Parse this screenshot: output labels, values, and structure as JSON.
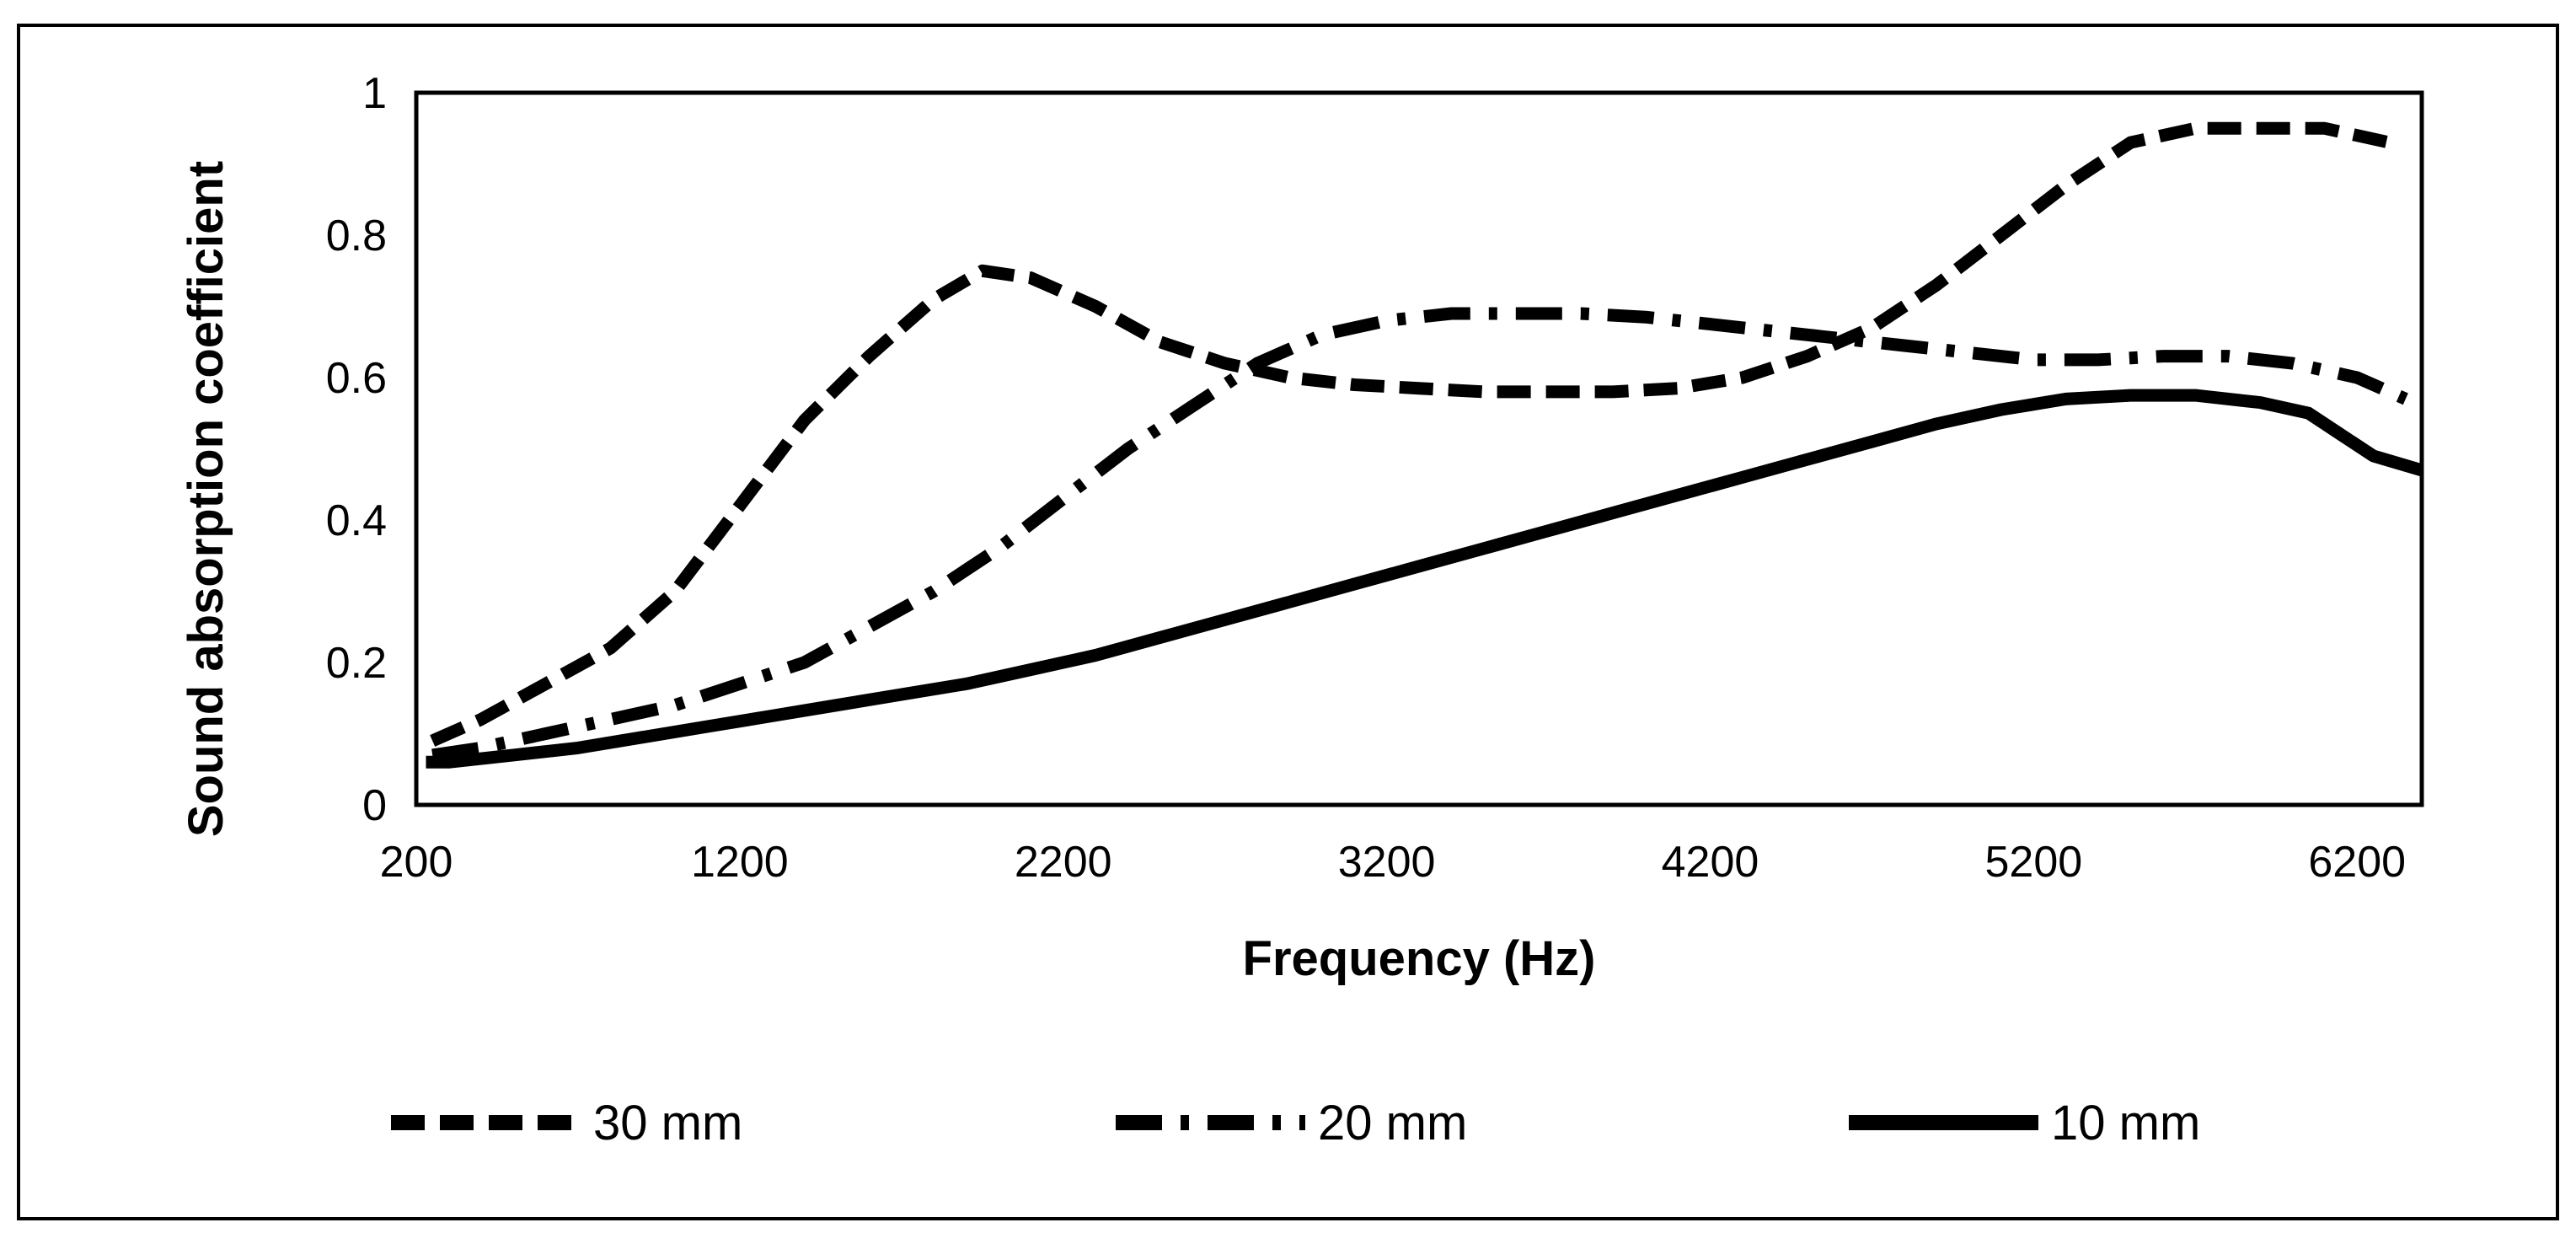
{
  "chart_data": {
    "type": "line",
    "title": "",
    "xlabel": "Frequency (Hz)",
    "ylabel": "Sound absorption coefficient",
    "xlim": [
      200,
      6400
    ],
    "ylim": [
      0,
      1
    ],
    "x_ticks": [
      200,
      1200,
      2200,
      3200,
      4200,
      5200,
      6200
    ],
    "y_ticks": [
      0,
      0.2,
      0.4,
      0.6,
      0.8,
      1
    ],
    "y_tick_labels": [
      "0",
      "0.2",
      "0.4",
      "0.6",
      "0.8",
      "1"
    ],
    "grid": false,
    "legend_position": "bottom",
    "series": [
      {
        "name": "30 mm",
        "style": "dashed",
        "x": [
          250,
          400,
          600,
          800,
          1000,
          1200,
          1400,
          1600,
          1800,
          1950,
          2100,
          2300,
          2500,
          2700,
          2900,
          3100,
          3300,
          3500,
          3700,
          3900,
          4100,
          4300,
          4500,
          4700,
          4900,
          5100,
          5300,
          5500,
          5700,
          5900,
          6100,
          6300
        ],
        "y": [
          0.09,
          0.12,
          0.17,
          0.22,
          0.3,
          0.42,
          0.54,
          0.63,
          0.71,
          0.75,
          0.74,
          0.7,
          0.65,
          0.62,
          0.6,
          0.59,
          0.585,
          0.58,
          0.58,
          0.58,
          0.585,
          0.6,
          0.63,
          0.67,
          0.73,
          0.8,
          0.87,
          0.93,
          0.95,
          0.95,
          0.95,
          0.93
        ]
      },
      {
        "name": "20 mm",
        "style": "dash-dot",
        "x": [
          250,
          400,
          600,
          800,
          1000,
          1200,
          1400,
          1600,
          1800,
          2000,
          2200,
          2400,
          2600,
          2800,
          3000,
          3200,
          3400,
          3600,
          3800,
          4000,
          4200,
          4400,
          4600,
          4800,
          5000,
          5200,
          5400,
          5600,
          5800,
          6000,
          6200,
          6350
        ],
        "y": [
          0.07,
          0.08,
          0.1,
          0.12,
          0.14,
          0.17,
          0.2,
          0.25,
          0.3,
          0.36,
          0.43,
          0.5,
          0.56,
          0.62,
          0.66,
          0.68,
          0.69,
          0.69,
          0.69,
          0.685,
          0.675,
          0.665,
          0.655,
          0.645,
          0.635,
          0.625,
          0.625,
          0.63,
          0.63,
          0.62,
          0.6,
          0.57
        ]
      },
      {
        "name": "10 mm",
        "style": "solid",
        "x": [
          230,
          300,
          500,
          700,
          900,
          1100,
          1300,
          1500,
          1700,
          1900,
          2100,
          2300,
          2500,
          2700,
          2900,
          3100,
          3300,
          3500,
          3700,
          3900,
          4100,
          4300,
          4500,
          4700,
          4900,
          5100,
          5300,
          5500,
          5700,
          5900,
          6050,
          6150,
          6250,
          6400
        ],
        "y": [
          0.06,
          0.06,
          0.07,
          0.08,
          0.095,
          0.11,
          0.125,
          0.14,
          0.155,
          0.17,
          0.19,
          0.21,
          0.235,
          0.26,
          0.285,
          0.31,
          0.335,
          0.36,
          0.385,
          0.41,
          0.435,
          0.46,
          0.485,
          0.51,
          0.535,
          0.555,
          0.57,
          0.575,
          0.575,
          0.565,
          0.55,
          0.52,
          0.49,
          0.47
        ]
      }
    ]
  }
}
